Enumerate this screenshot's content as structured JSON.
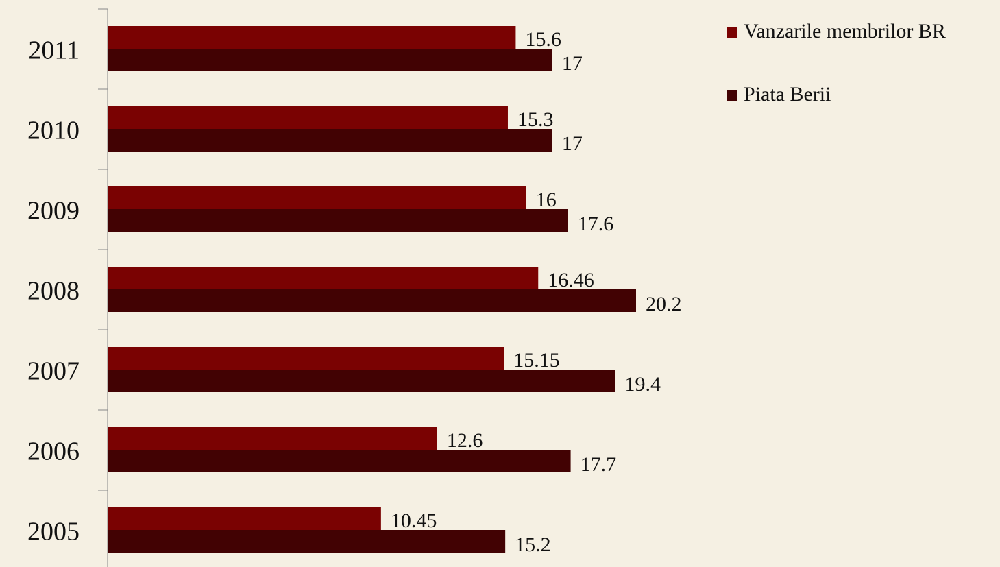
{
  "chart_data": {
    "type": "hbar",
    "categories": [
      "2011",
      "2010",
      "2009",
      "2008",
      "2007",
      "2006",
      "2005"
    ],
    "series": [
      {
        "name": "Vanzarile membrilor BR",
        "color": "#7a0202",
        "values": [
          15.6,
          15.3,
          16,
          16.46,
          15.15,
          12.6,
          10.45
        ]
      },
      {
        "name": "Piata Berii",
        "color": "#420203",
        "values": [
          17,
          17,
          17.6,
          20.2,
          19.4,
          17.7,
          15.2
        ]
      }
    ],
    "legend": "right"
  }
}
